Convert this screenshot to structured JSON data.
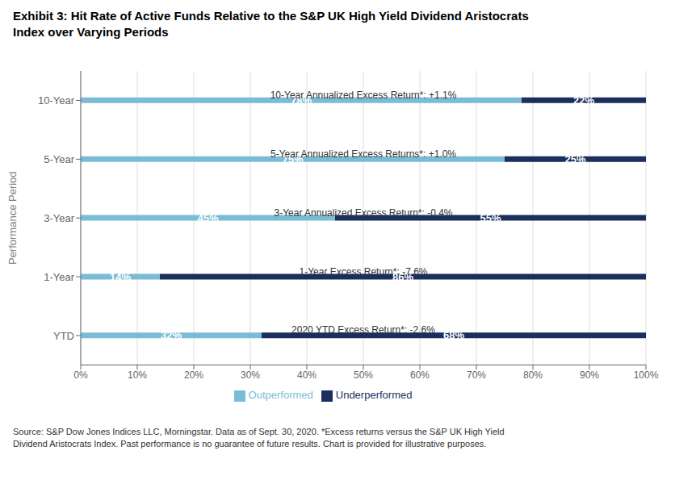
{
  "chart_data": {
    "type": "bar",
    "orientation": "horizontal",
    "stacked": true,
    "title": "Exhibit 3: Hit Rate of Active Funds Relative to the S&P UK High Yield Dividend Aristocrats\nIndex over Varying Periods",
    "source": "Source: S&P Dow Jones Indices LLC, Morningstar. Data as of Sept. 30, 2020. *Excess returns versus the S&P UK High Yield\nDividend Aristocrats Index. Past performance is no guarantee of future results. Chart is provided for illustrative purposes.",
    "y_label": "Performance Period",
    "categories": [
      "YTD",
      "1-Year",
      "3-Year",
      "5-Year",
      "10-Year"
    ],
    "series": [
      {
        "name": "Outperformed",
        "color": "#7abcd6",
        "values": [
          32,
          14,
          45,
          75,
          78
        ],
        "value_labels": [
          "32%",
          "14%",
          "45%",
          "75%",
          "78%"
        ]
      },
      {
        "name": "Underperformed",
        "color": "#1a2f5e",
        "values": [
          68,
          86,
          55,
          25,
          22
        ],
        "value_labels": [
          "68%",
          "86%",
          "55%",
          "25%",
          "22%"
        ]
      }
    ],
    "annotations": [
      "2020 YTD Excess Return*: -2.6%",
      "1-Year Excess Return*: -7.6%",
      "3-Year Annualized Excess Return*: -0.4%",
      "5-Year Annualized Excess Returns*: +1.0%",
      "10-Year Annualized Excess Return*: +1.1%"
    ],
    "xlim": [
      0,
      100
    ],
    "xticks": [
      {
        "value": 0,
        "label": "0%"
      },
      {
        "value": 10,
        "label": "10%"
      },
      {
        "value": 20,
        "label": "20%"
      },
      {
        "value": 30,
        "label": "30%"
      },
      {
        "value": 40,
        "label": "40%"
      },
      {
        "value": 50,
        "label": "50%"
      },
      {
        "value": 60,
        "label": "60%"
      },
      {
        "value": 70,
        "label": "70%"
      },
      {
        "value": 80,
        "label": "80%"
      },
      {
        "value": 90,
        "label": "90%"
      },
      {
        "value": 100,
        "label": "100%"
      }
    ],
    "grid": true,
    "data_labels": true,
    "legend": "bottom"
  }
}
